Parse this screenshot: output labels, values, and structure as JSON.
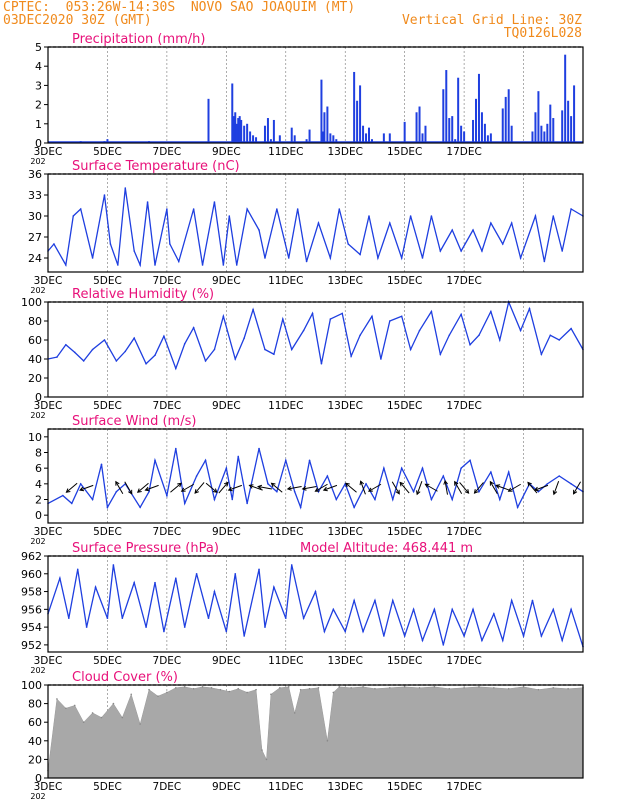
{
  "header": {
    "line1": "CPTEC:  053:26W-14:30S  NOVO SAO JOAQUIM (MT)",
    "line2": "03DEC2020 30Z (GMT)",
    "grid_note": "Vertical Grid Line: 30Z",
    "code": "TQ0126L028"
  },
  "x_labels": [
    "3DEC",
    "5DEC",
    "7DEC",
    "9DEC",
    "11DEC",
    "13DEC",
    "15DEC",
    "17DEC"
  ],
  "year_mark": "202",
  "model_altitude": "Model Altitude: 468.441 m",
  "colors": {
    "header": "#f08a1c",
    "title": "#e8117a",
    "line": "#1f3fe0",
    "cloud": "#a8a8a8"
  },
  "chart_data": [
    {
      "type": "bar",
      "title": "Precipitation (mm/h)",
      "ylim": [
        0,
        5
      ],
      "yticks": [
        0,
        1,
        2,
        3,
        4,
        5
      ],
      "x": [
        1.1,
        1.9,
        2.0,
        3.4,
        5.4,
        6.2,
        6.25,
        6.3,
        6.35,
        6.4,
        6.45,
        6.5,
        6.6,
        6.7,
        6.8,
        6.9,
        7.0,
        7.3,
        7.4,
        7.5,
        7.6,
        7.8,
        8.2,
        8.3,
        8.7,
        8.8,
        9.2,
        9.25,
        9.3,
        9.4,
        9.5,
        9.6,
        9.7,
        10.3,
        10.4,
        10.5,
        10.6,
        10.7,
        10.8,
        10.9,
        11.3,
        11.5,
        12.0,
        12.4,
        12.5,
        12.6,
        12.7,
        13.3,
        13.4,
        13.5,
        13.6,
        13.7,
        13.8,
        13.9,
        14.0,
        14.3,
        14.4,
        14.5,
        14.6,
        14.7,
        14.8,
        14.9,
        15.3,
        15.4,
        15.5,
        15.6,
        16.3,
        16.4,
        16.5,
        16.6,
        16.7,
        16.8,
        16.9,
        17.0,
        17.3,
        17.4,
        17.5,
        17.6,
        17.7
      ],
      "y": [
        0.1,
        0.1,
        0.2,
        0.1,
        2.3,
        3.1,
        1.4,
        1.6,
        1.0,
        1.3,
        1.4,
        1.2,
        0.9,
        1.0,
        0.6,
        0.4,
        0.3,
        0.9,
        1.3,
        0.2,
        1.2,
        0.4,
        0.8,
        0.4,
        0.2,
        0.7,
        3.3,
        0.6,
        1.6,
        1.9,
        0.5,
        0.4,
        0.2,
        3.7,
        2.2,
        3.0,
        0.9,
        0.5,
        0.8,
        0.2,
        0.5,
        0.5,
        1.1,
        1.6,
        1.9,
        0.5,
        0.9,
        2.8,
        3.8,
        1.3,
        1.4,
        0.2,
        3.4,
        0.9,
        0.6,
        1.2,
        2.3,
        3.6,
        1.6,
        1.0,
        0.4,
        0.5,
        1.8,
        2.4,
        2.8,
        0.9,
        0.6,
        1.6,
        2.7,
        0.9,
        0.6,
        1.0,
        2.0,
        1.3,
        1.7,
        4.6,
        2.2,
        1.4,
        3.0
      ]
    },
    {
      "type": "line",
      "title": "Surface Temperature (nC)",
      "ylim": [
        22,
        36
      ],
      "yticks": [
        24,
        27,
        30,
        33,
        36
      ],
      "x": [
        0,
        0.2,
        0.6,
        0.85,
        1.1,
        1.5,
        1.9,
        2.1,
        2.35,
        2.6,
        2.9,
        3.1,
        3.35,
        3.6,
        4.0,
        4.1,
        4.4,
        4.9,
        5.2,
        5.6,
        5.9,
        6.1,
        6.35,
        6.7,
        7.1,
        7.3,
        7.7,
        8.1,
        8.4,
        8.7,
        9.1,
        9.5,
        9.8,
        10.1,
        10.5,
        10.8,
        11.1,
        11.5,
        11.9,
        12.2,
        12.6,
        12.9,
        13.2,
        13.6,
        13.9,
        14.3,
        14.6,
        14.9,
        15.3,
        15.6,
        15.9,
        16.4,
        16.7,
        17.0,
        17.3,
        17.6,
        18.0
      ],
      "y": [
        25,
        26,
        23,
        30,
        31,
        24,
        33,
        26,
        23,
        34,
        25,
        23,
        32,
        23,
        31,
        26,
        23.5,
        31,
        23,
        32,
        23,
        30,
        23,
        31,
        28,
        24,
        31,
        24,
        31,
        23.5,
        29,
        24,
        31,
        26,
        24.5,
        30,
        24,
        29,
        24,
        30,
        24,
        30,
        25,
        28,
        25,
        28,
        25,
        29,
        26,
        29,
        24,
        30,
        23.5,
        30,
        25,
        31,
        30
      ]
    },
    {
      "type": "line",
      "title": "Relative Humidity (%)",
      "ylim": [
        0,
        100
      ],
      "yticks": [
        0,
        20,
        40,
        60,
        80,
        100
      ],
      "x": [
        0,
        0.3,
        0.6,
        0.9,
        1.2,
        1.5,
        1.9,
        2.3,
        2.6,
        2.9,
        3.3,
        3.6,
        3.9,
        4.3,
        4.6,
        4.9,
        5.3,
        5.6,
        5.9,
        6.3,
        6.6,
        6.9,
        7.3,
        7.6,
        7.9,
        8.2,
        8.6,
        8.9,
        9.2,
        9.5,
        9.9,
        10.2,
        10.5,
        10.9,
        11.2,
        11.5,
        11.9,
        12.2,
        12.5,
        12.9,
        13.2,
        13.5,
        13.9,
        14.2,
        14.5,
        14.9,
        15.2,
        15.5,
        15.9,
        16.2,
        16.6,
        16.9,
        17.2,
        17.6,
        18.0
      ],
      "y": [
        40,
        42,
        55,
        47,
        38,
        50,
        60,
        38,
        48,
        62,
        35,
        44,
        64,
        30,
        56,
        73,
        38,
        50,
        85,
        40,
        62,
        92,
        50,
        45,
        82,
        50,
        70,
        88,
        35,
        82,
        88,
        43,
        65,
        85,
        40,
        80,
        85,
        50,
        70,
        90,
        45,
        65,
        87,
        55,
        65,
        90,
        60,
        100,
        70,
        93,
        45,
        65,
        60,
        72,
        50
      ]
    },
    {
      "type": "line",
      "title": "Surface Wind (m/s)",
      "ylim": [
        -1,
        11
      ],
      "yticks": [
        0,
        2,
        4,
        6,
        8,
        10
      ],
      "x": [
        0,
        0.5,
        0.8,
        1.1,
        1.5,
        1.8,
        2.0,
        2.3,
        2.6,
        3.1,
        3.4,
        3.6,
        4.0,
        4.3,
        4.6,
        5.0,
        5.3,
        5.6,
        6.0,
        6.2,
        6.4,
        6.7,
        7.1,
        7.4,
        7.7,
        8.0,
        8.3,
        8.5,
        8.8,
        9.1,
        9.4,
        9.7,
        10.0,
        10.3,
        10.7,
        11.0,
        11.3,
        11.6,
        11.9,
        12.3,
        12.6,
        12.9,
        13.3,
        13.6,
        13.9,
        14.2,
        14.5,
        14.9,
        15.2,
        15.5,
        15.8,
        16.2,
        16.5,
        16.8,
        17.2,
        17.6,
        18.0
      ],
      "y": [
        1.5,
        2.5,
        1.5,
        4,
        2,
        6.5,
        1,
        3,
        4,
        1,
        3,
        7,
        2.5,
        8.5,
        1.5,
        5,
        7,
        2,
        6,
        2,
        7.5,
        1.5,
        8.5,
        4,
        3,
        7,
        3,
        1,
        7,
        3,
        5,
        2,
        4,
        1,
        4,
        2,
        6,
        2,
        6,
        3,
        6,
        2,
        5,
        2,
        6,
        7,
        3,
        5.5,
        2,
        5.5,
        1,
        4,
        3,
        4,
        5,
        4,
        3
      ]
    },
    {
      "type": "line",
      "title": "Surface Pressure (hPa)",
      "ylim": [
        951.2,
        962
      ],
      "yticks": [
        952,
        954,
        956,
        958,
        960,
        962
      ],
      "x": [
        0,
        0.4,
        0.7,
        1.0,
        1.3,
        1.6,
        2.0,
        2.2,
        2.5,
        2.9,
        3.3,
        3.6,
        3.9,
        4.3,
        4.6,
        5.0,
        5.4,
        5.6,
        6.0,
        6.3,
        6.6,
        7.1,
        7.3,
        7.6,
        8.0,
        8.2,
        8.6,
        9.0,
        9.3,
        9.6,
        10.0,
        10.3,
        10.6,
        11.0,
        11.3,
        11.6,
        12.0,
        12.3,
        12.6,
        13.0,
        13.3,
        13.6,
        14.0,
        14.3,
        14.6,
        15.0,
        15.3,
        15.6,
        16.0,
        16.3,
        16.6,
        17.0,
        17.3,
        17.6,
        18.0
      ],
      "y": [
        955.5,
        959.5,
        955,
        960.5,
        954,
        958.5,
        955,
        961,
        955,
        959,
        954,
        959,
        953.5,
        959.5,
        954,
        960,
        955,
        958,
        953.5,
        960,
        953,
        960.5,
        954,
        958.5,
        955,
        961,
        955,
        958,
        953.5,
        956,
        953.5,
        957,
        953.5,
        957,
        953,
        957,
        953,
        956,
        952.5,
        956,
        952,
        956,
        953,
        956,
        952.5,
        955.5,
        952.5,
        957,
        953,
        957,
        953,
        956,
        952.5,
        956,
        951.8
      ]
    },
    {
      "type": "area",
      "title": "Cloud Cover (%)",
      "ylim": [
        0,
        100
      ],
      "yticks": [
        0,
        20,
        40,
        60,
        80,
        100
      ],
      "x": [
        0,
        0.3,
        0.6,
        0.9,
        1.2,
        1.5,
        1.8,
        2.2,
        2.5,
        2.8,
        3.1,
        3.4,
        3.7,
        4.0,
        4.3,
        4.6,
        4.9,
        5.2,
        5.5,
        5.8,
        6.1,
        6.4,
        6.7,
        7.0,
        7.2,
        7.35,
        7.5,
        7.8,
        8.1,
        8.3,
        8.5,
        8.8,
        9.1,
        9.4,
        9.6,
        9.8,
        10.2,
        10.6,
        11.0,
        11.5,
        12.0,
        12.5,
        13.0,
        13.5,
        14.0,
        14.5,
        15.0,
        15.5,
        16.0,
        16.5,
        17.0,
        17.5,
        18.0
      ],
      "y": [
        8,
        85,
        75,
        78,
        60,
        70,
        65,
        80,
        65,
        90,
        58,
        95,
        88,
        92,
        97,
        98,
        96,
        98,
        97,
        95,
        93,
        96,
        92,
        95,
        30,
        20,
        90,
        97,
        98,
        70,
        95,
        96,
        97,
        40,
        92,
        98,
        97,
        98,
        96,
        97,
        98,
        97,
        98,
        96,
        97,
        98,
        97,
        96,
        98,
        95,
        97,
        96,
        97
      ]
    }
  ],
  "wind_arrows": {
    "x": [
      0.8,
      1.3,
      2.4,
      2.7,
      3.2,
      3.5,
      4.3,
      4.7,
      5.1,
      5.5,
      5.9,
      6.3,
      7.0,
      7.3,
      7.7,
      8.3,
      8.8,
      9.2,
      9.5,
      10.2,
      10.6,
      11.0,
      11.7,
      12.0,
      12.5,
      12.9,
      13.4,
      13.8,
      14.0,
      14.5,
      15.0,
      15.3,
      15.7,
      16.3,
      16.6,
      17.1,
      17.8
    ],
    "dir_deg": [
      220,
      200,
      120,
      300,
      220,
      200,
      40,
      210,
      230,
      320,
      50,
      200,
      160,
      170,
      140,
      190,
      190,
      210,
      200,
      140,
      110,
      210,
      300,
      130,
      250,
      150,
      100,
      120,
      310,
      230,
      120,
      160,
      210,
      130,
      200,
      250,
      240
    ]
  }
}
